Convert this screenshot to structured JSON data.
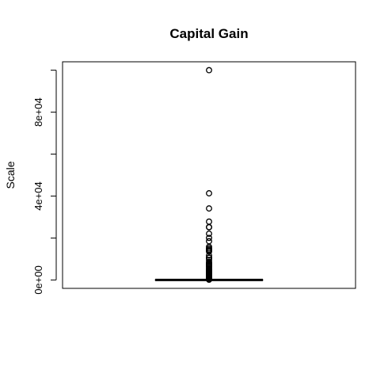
{
  "chart_data": {
    "type": "boxplot",
    "title": "Capital Gain",
    "xlabel": "",
    "ylabel": "Scale",
    "ylim": [
      -4000,
      104000
    ],
    "y_ticks": [
      0,
      20000,
      40000,
      60000,
      80000,
      100000
    ],
    "y_tick_labels": [
      "0e+00",
      "",
      "4e+04",
      "",
      "8e+04",
      ""
    ],
    "box": {
      "min": 0,
      "q1": 0,
      "median": 0,
      "q3": 0,
      "max": 0
    },
    "outliers": [
      99999,
      41310,
      34095,
      27828,
      25236,
      25124,
      22040,
      20051,
      18481,
      15831,
      15024,
      15020,
      14344,
      14084,
      13550,
      11678,
      10605,
      10520,
      9562,
      8614,
      7978,
      7688,
      7430,
      7298,
      6849,
      6514,
      6418,
      5721,
      5178,
      5013,
      4787,
      4650,
      4386,
      4101,
      3908,
      3674,
      3471,
      3325,
      3137,
      2885,
      2653,
      2407,
      2174,
      1848,
      1471,
      1086,
      914,
      594,
      401,
      114
    ],
    "grid": false,
    "legend": "none",
    "colors": {
      "stroke": "#000000",
      "background": "#ffffff"
    }
  }
}
